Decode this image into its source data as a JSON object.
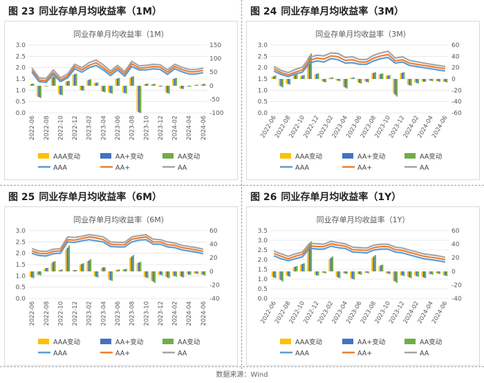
{
  "source": "数据来源：Wind",
  "legend_labels": [
    "AAA变动",
    "AA+变动",
    "AA变动",
    "AAA",
    "AA+",
    "AA"
  ],
  "colors": {
    "AAA变动": "#FFC000",
    "AA+变动": "#4472C4",
    "AA变动": "#70AD47",
    "AAA": "#5B9BD5",
    "AA+": "#ED7D31",
    "AA": "#A5A5A5"
  },
  "chart_data": [
    {
      "fig_num": "图 23",
      "fig_title": "同业存单月均收益率（1M）",
      "type": "bar+line",
      "title": "同业存单月均收益率（1M）",
      "x": [
        "2022-06",
        "2022-07",
        "2022-08",
        "2022-09",
        "2022-10",
        "2022-11",
        "2022-12",
        "2023-01",
        "2023-02",
        "2023-03",
        "2023-04",
        "2023-05",
        "2023-06",
        "2023-07",
        "2023-08",
        "2023-09",
        "2023-10",
        "2023-11",
        "2023-12",
        "2024-01",
        "2024-02",
        "2024-03",
        "2024-04",
        "2024-05",
        "2024-06"
      ],
      "xticks": [
        "2022-06",
        "2022-08",
        "2022-10",
        "2022-12",
        "2023-02",
        "2023-04",
        "2023-06",
        "2023-08",
        "2023-10",
        "2023-12",
        "2024-02",
        "2024-04",
        "2024-06"
      ],
      "xtick_rotation": 90,
      "ylim": [
        0,
        3.0
      ],
      "yticks": [
        "0.0",
        "0.5",
        "1.0",
        "1.5",
        "2.0",
        "2.5",
        "3.0"
      ],
      "y2lim": [
        -100,
        150
      ],
      "y2ticks": [
        "-100",
        "-50",
        "0",
        "50",
        "100",
        "150"
      ],
      "series": [
        {
          "name": "AAA变动",
          "kind": "bar",
          "axis": "right",
          "values": [
            5,
            -40,
            -2,
            30,
            -30,
            15,
            40,
            -15,
            20,
            10,
            -20,
            -25,
            25,
            -25,
            30,
            -95,
            5,
            5,
            -3,
            -25,
            25,
            -10,
            -3,
            3,
            5
          ]
        },
        {
          "name": "AA+变动",
          "kind": "bar",
          "axis": "right",
          "values": [
            7,
            -42,
            -2,
            33,
            -33,
            17,
            43,
            -17,
            22,
            11,
            -22,
            -27,
            27,
            -27,
            33,
            -98,
            7,
            6,
            -3,
            -27,
            27,
            -11,
            -3,
            3,
            6
          ]
        },
        {
          "name": "AA变动",
          "kind": "bar",
          "axis": "right",
          "values": [
            8,
            -45,
            -2,
            35,
            -35,
            18,
            45,
            -18,
            24,
            12,
            -24,
            -29,
            29,
            -29,
            35,
            -100,
            8,
            7,
            -3,
            -29,
            29,
            -12,
            -4,
            4,
            7
          ]
        },
        {
          "name": "AAA",
          "kind": "line",
          "axis": "left",
          "values": [
            1.8,
            1.38,
            1.35,
            1.7,
            1.38,
            1.55,
            1.95,
            1.8,
            2.0,
            2.1,
            1.9,
            1.65,
            1.9,
            1.62,
            2.05,
            1.9,
            1.9,
            1.95,
            1.92,
            1.7,
            1.95,
            1.82,
            1.72,
            1.72,
            1.78
          ]
        },
        {
          "name": "AA+",
          "kind": "line",
          "axis": "left",
          "values": [
            1.88,
            1.45,
            1.43,
            1.78,
            1.45,
            1.63,
            2.05,
            1.9,
            2.1,
            2.22,
            2.0,
            1.75,
            2.0,
            1.72,
            2.17,
            1.98,
            2.0,
            2.05,
            2.02,
            1.8,
            2.05,
            1.92,
            1.82,
            1.82,
            1.88
          ]
        },
        {
          "name": "AA",
          "kind": "line",
          "axis": "left",
          "values": [
            1.98,
            1.55,
            1.52,
            1.9,
            1.55,
            1.72,
            2.15,
            2.0,
            2.22,
            2.34,
            2.12,
            1.85,
            2.1,
            1.82,
            2.28,
            2.08,
            2.1,
            2.15,
            2.12,
            1.9,
            2.15,
            2.02,
            1.92,
            1.92,
            1.98
          ]
        }
      ]
    },
    {
      "fig_num": "图 24",
      "fig_title": "同业存单月均收益率（3M）",
      "type": "bar+line",
      "title": "同业存单月均收益率（3M）",
      "x": [
        "2022-06",
        "2022-07",
        "2022-08",
        "2022-09",
        "2022-10",
        "2022-11",
        "2022-12",
        "2023-01",
        "2023-02",
        "2023-03",
        "2023-04",
        "2023-05",
        "2023-06",
        "2023-07",
        "2023-08",
        "2023-09",
        "2023-10",
        "2023-11",
        "2023-12",
        "2024-01",
        "2024-02",
        "2024-03",
        "2024-04",
        "2024-05",
        "2024-06"
      ],
      "xticks": [
        "2022-06",
        "2022-08",
        "2022-10",
        "2022-12",
        "2023-02",
        "2023-04",
        "2023-06",
        "2023-08",
        "2023-10",
        "2023-12",
        "2024-02",
        "2024-04",
        "2024-06"
      ],
      "xtick_rotation": -60,
      "ylim": [
        0,
        3.0
      ],
      "yticks": [
        "0.0",
        "0.5",
        "1.0",
        "1.5",
        "2.0",
        "2.5",
        "3.0"
      ],
      "y2lim": [
        -60,
        60
      ],
      "y2ticks": [
        "-60",
        "-40",
        "-20",
        "0",
        "20",
        "40",
        "60"
      ],
      "series": [
        {
          "name": "AAA变动",
          "kind": "bar",
          "axis": "right",
          "values": [
            4,
            -12,
            -8,
            6,
            5,
            38,
            8,
            -4,
            2,
            -3,
            -14,
            2,
            -6,
            -4,
            10,
            8,
            6,
            -25,
            10,
            -10,
            -6,
            -4,
            -3,
            -4,
            -5
          ]
        },
        {
          "name": "AA+变动",
          "kind": "bar",
          "axis": "right",
          "values": [
            5,
            -13,
            -9,
            7,
            6,
            41,
            9,
            -5,
            2,
            -3,
            -15,
            2,
            -7,
            -5,
            11,
            9,
            6,
            -28,
            11,
            -11,
            -7,
            -5,
            -3,
            -4,
            -5
          ]
        },
        {
          "name": "AA变动",
          "kind": "bar",
          "axis": "right",
          "values": [
            6,
            -15,
            -10,
            8,
            7,
            45,
            10,
            -6,
            3,
            -4,
            -17,
            3,
            -8,
            -6,
            12,
            10,
            7,
            -31,
            12,
            -12,
            -8,
            -5,
            -4,
            -5,
            -6
          ]
        },
        {
          "name": "AAA",
          "kind": "line",
          "axis": "left",
          "values": [
            1.85,
            1.7,
            1.6,
            1.72,
            1.8,
            2.2,
            2.3,
            2.25,
            2.4,
            2.35,
            2.2,
            2.22,
            2.15,
            2.15,
            2.3,
            2.4,
            2.45,
            2.2,
            2.25,
            2.1,
            2.05,
            2.0,
            1.95,
            1.9,
            1.85
          ]
        },
        {
          "name": "AA+",
          "kind": "line",
          "axis": "left",
          "values": [
            1.95,
            1.78,
            1.68,
            1.8,
            1.9,
            2.32,
            2.42,
            2.38,
            2.52,
            2.48,
            2.32,
            2.35,
            2.25,
            2.25,
            2.42,
            2.52,
            2.58,
            2.3,
            2.35,
            2.2,
            2.15,
            2.1,
            2.05,
            2.0,
            1.95
          ]
        },
        {
          "name": "AA",
          "kind": "line",
          "axis": "left",
          "values": [
            2.05,
            1.88,
            1.78,
            1.92,
            2.02,
            2.45,
            2.55,
            2.52,
            2.65,
            2.62,
            2.45,
            2.48,
            2.36,
            2.36,
            2.55,
            2.65,
            2.72,
            2.42,
            2.48,
            2.32,
            2.26,
            2.2,
            2.15,
            2.1,
            2.05
          ]
        }
      ]
    },
    {
      "fig_num": "图 25",
      "fig_title": "同业存单月均收益率（6M）",
      "type": "bar+line",
      "title": "同业存单月均收益率（6M）",
      "x": [
        "2022-06",
        "2022-07",
        "2022-08",
        "2022-09",
        "2022-10",
        "2022-11",
        "2022-12",
        "2023-01",
        "2023-02",
        "2023-03",
        "2023-04",
        "2023-05",
        "2023-06",
        "2023-07",
        "2023-08",
        "2023-09",
        "2023-10",
        "2023-11",
        "2023-12",
        "2024-01",
        "2024-02",
        "2024-03",
        "2024-04",
        "2024-05",
        "2024-06"
      ],
      "xticks": [
        "2022-06",
        "2022-08",
        "2022-10",
        "2022-12",
        "2023-02",
        "2023-04",
        "2023-06",
        "2023-08",
        "2023-10",
        "2023-12",
        "2024-02",
        "2024-04",
        "2024-06"
      ],
      "xtick_rotation": 90,
      "ylim": [
        0,
        3.0
      ],
      "yticks": [
        "0.0",
        "0.5",
        "1.0",
        "1.5",
        "2.0",
        "2.5",
        "3.0"
      ],
      "y2lim": [
        -40,
        60
      ],
      "y2ticks": [
        "-40",
        "-20",
        "0",
        "20",
        "40",
        "60"
      ],
      "series": [
        {
          "name": "AAA变动",
          "kind": "bar",
          "axis": "right",
          "values": [
            -8,
            -5,
            4,
            12,
            2,
            32,
            2,
            10,
            15,
            -7,
            5,
            -12,
            2,
            3,
            20,
            12,
            -8,
            -14,
            -5,
            -8,
            -6,
            -7,
            -4,
            -3,
            -5
          ]
        },
        {
          "name": "AA+变动",
          "kind": "bar",
          "axis": "right",
          "values": [
            -9,
            -5,
            5,
            14,
            2,
            35,
            2,
            11,
            16,
            -8,
            6,
            -13,
            2,
            3,
            22,
            13,
            -9,
            -15,
            -5,
            -9,
            -7,
            -8,
            -5,
            -3,
            -5
          ]
        },
        {
          "name": "AA变动",
          "kind": "bar",
          "axis": "right",
          "values": [
            -10,
            -6,
            5,
            15,
            3,
            38,
            2,
            12,
            18,
            -9,
            6,
            -14,
            3,
            4,
            24,
            14,
            -10,
            -17,
            -6,
            -10,
            -8,
            -9,
            -5,
            -4,
            -6
          ]
        },
        {
          "name": "AAA",
          "kind": "line",
          "axis": "left",
          "values": [
            2.0,
            1.9,
            1.88,
            1.98,
            2.0,
            2.5,
            2.48,
            2.55,
            2.6,
            2.55,
            2.5,
            2.3,
            2.28,
            2.28,
            2.5,
            2.58,
            2.6,
            2.4,
            2.4,
            2.28,
            2.25,
            2.15,
            2.1,
            2.05,
            1.98
          ]
        },
        {
          "name": "AA+",
          "kind": "line",
          "axis": "left",
          "values": [
            2.1,
            2.0,
            1.98,
            2.08,
            2.1,
            2.6,
            2.58,
            2.65,
            2.72,
            2.68,
            2.6,
            2.4,
            2.38,
            2.38,
            2.62,
            2.68,
            2.72,
            2.5,
            2.5,
            2.38,
            2.35,
            2.25,
            2.2,
            2.15,
            2.08
          ]
        },
        {
          "name": "AA",
          "kind": "line",
          "axis": "left",
          "values": [
            2.2,
            2.1,
            2.08,
            2.18,
            2.2,
            2.72,
            2.7,
            2.75,
            2.82,
            2.78,
            2.72,
            2.5,
            2.48,
            2.48,
            2.72,
            2.78,
            2.82,
            2.62,
            2.6,
            2.5,
            2.45,
            2.35,
            2.3,
            2.25,
            2.18
          ]
        }
      ]
    },
    {
      "fig_num": "图 26",
      "fig_title": "同业存单月均收益率（1Y）",
      "type": "bar+line",
      "title": "同业存单月均收益率（1Y）",
      "x": [
        "2022-06",
        "2022-07",
        "2022-08",
        "2022-09",
        "2022-10",
        "2022-11",
        "2022-12",
        "2023-01",
        "2023-02",
        "2023-03",
        "2023-04",
        "2023-05",
        "2023-06",
        "2023-07",
        "2023-08",
        "2023-09",
        "2023-10",
        "2023-11",
        "2023-12",
        "2024-01",
        "2024-02",
        "2024-03",
        "2024-04",
        "2024-05",
        "2024-06"
      ],
      "xticks": [
        "2022-06",
        "2022-08",
        "2022-10",
        "2022-12",
        "2023-02",
        "2023-04",
        "2023-06",
        "2023-08",
        "2023-10",
        "2023-12",
        "2024-02",
        "2024-04",
        "2024-06"
      ],
      "xtick_rotation": -60,
      "ylim": [
        0,
        3.5
      ],
      "yticks": [
        "0.0",
        "0.5",
        "1.0",
        "1.5",
        "2.0",
        "2.5",
        "3.0",
        "3.5"
      ],
      "y2lim": [
        -40,
        60
      ],
      "y2ticks": [
        "-40",
        "-20",
        "0",
        "20",
        "40",
        "60"
      ],
      "series": [
        {
          "name": "AAA变动",
          "kind": "bar",
          "axis": "right",
          "values": [
            -8,
            -12,
            -6,
            6,
            10,
            36,
            -5,
            -2,
            18,
            -8,
            -3,
            -10,
            -4,
            -2,
            20,
            8,
            -3,
            -14,
            -6,
            -8,
            -6,
            -8,
            -4,
            -3,
            -6
          ]
        },
        {
          "name": "AA+变动",
          "kind": "bar",
          "axis": "right",
          "values": [
            -9,
            -13,
            -7,
            7,
            11,
            40,
            -6,
            -2,
            20,
            -9,
            -3,
            -11,
            -4,
            -2,
            22,
            9,
            -3,
            -15,
            -6,
            -9,
            -7,
            -9,
            -4,
            -3,
            -6
          ]
        },
        {
          "name": "AA变动",
          "kind": "bar",
          "axis": "right",
          "values": [
            -10,
            -15,
            -8,
            8,
            12,
            44,
            -6,
            -3,
            22,
            -10,
            -4,
            -12,
            -5,
            -3,
            24,
            10,
            -4,
            -17,
            -7,
            -10,
            -8,
            -10,
            -5,
            -4,
            -7
          ]
        },
        {
          "name": "AAA",
          "kind": "line",
          "axis": "left",
          "values": [
            2.2,
            2.05,
            1.95,
            2.05,
            2.15,
            2.6,
            2.55,
            2.55,
            2.7,
            2.62,
            2.58,
            2.4,
            2.38,
            2.35,
            2.5,
            2.55,
            2.55,
            2.4,
            2.35,
            2.25,
            2.15,
            2.05,
            2.0,
            1.95,
            1.88
          ]
        },
        {
          "name": "AA+",
          "kind": "line",
          "axis": "left",
          "values": [
            2.32,
            2.18,
            2.05,
            2.18,
            2.28,
            2.72,
            2.68,
            2.68,
            2.82,
            2.75,
            2.7,
            2.52,
            2.5,
            2.48,
            2.62,
            2.68,
            2.68,
            2.52,
            2.48,
            2.38,
            2.28,
            2.18,
            2.12,
            2.08,
            2.0
          ]
        },
        {
          "name": "AA",
          "kind": "line",
          "axis": "left",
          "values": [
            2.45,
            2.3,
            2.18,
            2.3,
            2.4,
            2.85,
            2.82,
            2.8,
            2.95,
            2.88,
            2.82,
            2.65,
            2.62,
            2.6,
            2.75,
            2.8,
            2.8,
            2.65,
            2.6,
            2.5,
            2.4,
            2.3,
            2.25,
            2.2,
            2.12
          ]
        }
      ]
    }
  ]
}
